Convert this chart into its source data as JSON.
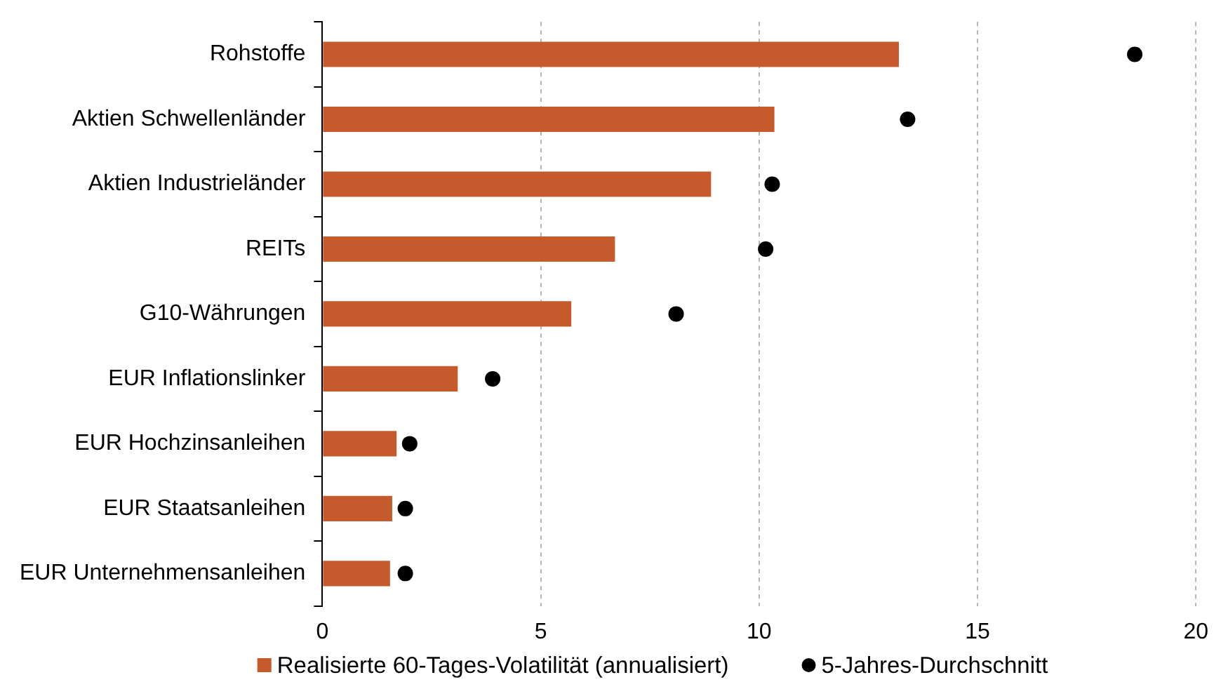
{
  "chart_data": {
    "type": "bar",
    "orientation": "horizontal",
    "categories": [
      "Rohstoffe",
      "Aktien Schwellenländer",
      "Aktien Industrieländer",
      "REITs",
      "G10-Währungen",
      "EUR Inflationslinker",
      "EUR Hochzinsanleihen",
      "EUR Staatsanleihen",
      "EUR Unternehmensanleihen"
    ],
    "series": [
      {
        "name": "Realisierte 60-Tages-Volatilität (annualisiert)",
        "color": "#c55a2d",
        "values": [
          13.2,
          10.35,
          8.9,
          6.7,
          5.7,
          3.1,
          1.7,
          1.6,
          1.55
        ]
      },
      {
        "name": "5-Jahres-Durchschnitt",
        "type": "scatter",
        "color": "#000000",
        "marker": "circle",
        "values": [
          18.6,
          13.4,
          10.3,
          10.15,
          8.1,
          3.9,
          2.0,
          1.9,
          1.9
        ]
      }
    ],
    "xlim": [
      0,
      20
    ],
    "xticks": [
      0,
      5,
      10,
      15,
      20
    ],
    "grid": "x",
    "legend": "bottom"
  }
}
